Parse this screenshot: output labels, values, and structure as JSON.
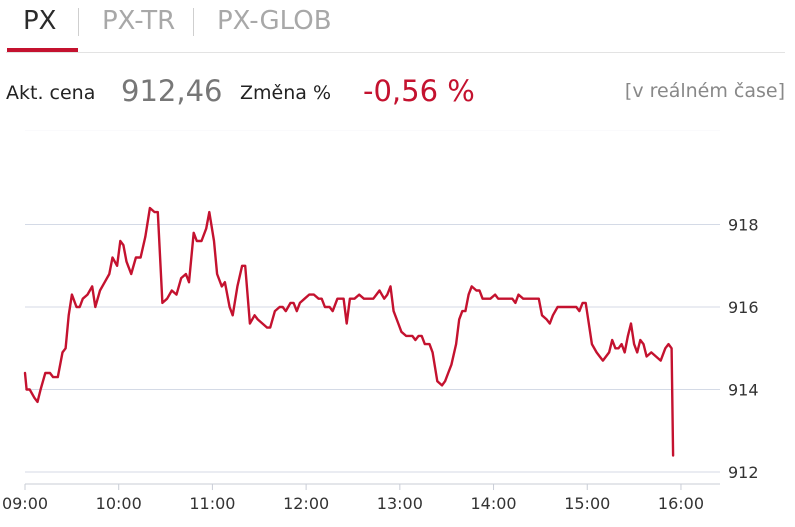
{
  "tabs": [
    {
      "label": "PX",
      "active": true
    },
    {
      "label": "PX-TR",
      "active": false
    },
    {
      "label": "PX-GLOB",
      "active": false
    }
  ],
  "quote": {
    "price_label": "Akt. cena",
    "price": "912,46",
    "change_label": "Změna %",
    "change": "-0,56 %",
    "realtime": "[v reálném čase]"
  },
  "colors": {
    "accent": "#c4122f",
    "grid": "#d4dae6",
    "text": "#333333"
  },
  "chart_data": {
    "type": "line",
    "title": "",
    "xlabel": "",
    "ylabel": "",
    "x_ticks": [
      "09:00",
      "10:00",
      "11:00",
      "12:00",
      "13:00",
      "14:00",
      "15:00",
      "16:00"
    ],
    "y_ticks": [
      "912",
      "914",
      "916",
      "918"
    ],
    "ylim": [
      912,
      920.3
    ],
    "xlim": [
      "09:00",
      "16:25"
    ],
    "grid": true,
    "series": [
      {
        "color": "#c4122f",
        "points": [
          [
            "09:00",
            914.4
          ],
          [
            "09:01",
            914.0
          ],
          [
            "09:03",
            914.0
          ],
          [
            "09:06",
            913.8
          ],
          [
            "09:08",
            913.7
          ],
          [
            "09:10",
            914.0
          ],
          [
            "09:13",
            914.4
          ],
          [
            "09:16",
            914.4
          ],
          [
            "09:18",
            914.3
          ],
          [
            "09:21",
            914.3
          ],
          [
            "09:24",
            914.9
          ],
          [
            "09:26",
            915.0
          ],
          [
            "09:28",
            915.8
          ],
          [
            "09:30",
            916.3
          ],
          [
            "09:33",
            916.0
          ],
          [
            "09:35",
            916.0
          ],
          [
            "09:37",
            916.2
          ],
          [
            "09:40",
            916.3
          ],
          [
            "09:43",
            916.5
          ],
          [
            "09:45",
            916.0
          ],
          [
            "09:48",
            916.4
          ],
          [
            "09:51",
            916.6
          ],
          [
            "09:54",
            916.8
          ],
          [
            "09:56",
            917.2
          ],
          [
            "09:59",
            917.0
          ],
          [
            "10:01",
            917.6
          ],
          [
            "10:03",
            917.5
          ],
          [
            "10:05",
            917.1
          ],
          [
            "10:08",
            916.8
          ],
          [
            "10:11",
            917.2
          ],
          [
            "10:14",
            917.2
          ],
          [
            "10:17",
            917.7
          ],
          [
            "10:20",
            918.4
          ],
          [
            "10:23",
            918.3
          ],
          [
            "10:25",
            918.3
          ],
          [
            "10:28",
            916.1
          ],
          [
            "10:31",
            916.2
          ],
          [
            "10:34",
            916.4
          ],
          [
            "10:37",
            916.3
          ],
          [
            "10:40",
            916.7
          ],
          [
            "10:43",
            916.8
          ],
          [
            "10:45",
            916.6
          ],
          [
            "10:48",
            917.8
          ],
          [
            "10:50",
            917.6
          ],
          [
            "10:53",
            917.6
          ],
          [
            "10:56",
            917.9
          ],
          [
            "10:58",
            918.3
          ],
          [
            "11:01",
            917.6
          ],
          [
            "11:03",
            916.8
          ],
          [
            "11:06",
            916.5
          ],
          [
            "11:08",
            916.6
          ],
          [
            "11:11",
            916.0
          ],
          [
            "11:13",
            915.8
          ],
          [
            "11:16",
            916.5
          ],
          [
            "11:19",
            917.0
          ],
          [
            "11:21",
            917.0
          ],
          [
            "11:24",
            915.6
          ],
          [
            "11:27",
            915.8
          ],
          [
            "11:29",
            915.7
          ],
          [
            "11:32",
            915.6
          ],
          [
            "11:35",
            915.5
          ],
          [
            "11:37",
            915.5
          ],
          [
            "11:40",
            915.9
          ],
          [
            "11:43",
            916.0
          ],
          [
            "11:45",
            916.0
          ],
          [
            "11:47",
            915.9
          ],
          [
            "11:50",
            916.1
          ],
          [
            "11:52",
            916.1
          ],
          [
            "11:54",
            915.9
          ],
          [
            "11:56",
            916.1
          ],
          [
            "11:59",
            916.2
          ],
          [
            "12:02",
            916.3
          ],
          [
            "12:05",
            916.3
          ],
          [
            "12:08",
            916.2
          ],
          [
            "12:10",
            916.2
          ],
          [
            "12:12",
            916.0
          ],
          [
            "12:15",
            916.0
          ],
          [
            "12:17",
            915.9
          ],
          [
            "12:20",
            916.2
          ],
          [
            "12:22",
            916.2
          ],
          [
            "12:24",
            916.2
          ],
          [
            "12:26",
            915.6
          ],
          [
            "12:28",
            916.2
          ],
          [
            "12:31",
            916.2
          ],
          [
            "12:34",
            916.3
          ],
          [
            "12:37",
            916.2
          ],
          [
            "12:40",
            916.2
          ],
          [
            "12:43",
            916.2
          ],
          [
            "12:45",
            916.3
          ],
          [
            "12:47",
            916.4
          ],
          [
            "12:50",
            916.2
          ],
          [
            "12:52",
            916.3
          ],
          [
            "12:54",
            916.5
          ],
          [
            "12:56",
            915.9
          ],
          [
            "12:59",
            915.6
          ],
          [
            "13:01",
            915.4
          ],
          [
            "13:04",
            915.3
          ],
          [
            "13:06",
            915.3
          ],
          [
            "13:08",
            915.3
          ],
          [
            "13:10",
            915.2
          ],
          [
            "13:12",
            915.3
          ],
          [
            "13:14",
            915.3
          ],
          [
            "13:16",
            915.1
          ],
          [
            "13:19",
            915.1
          ],
          [
            "13:21",
            914.9
          ],
          [
            "13:24",
            914.2
          ],
          [
            "13:27",
            914.1
          ],
          [
            "13:29",
            914.2
          ],
          [
            "13:31",
            914.4
          ],
          [
            "13:33",
            914.6
          ],
          [
            "13:36",
            915.1
          ],
          [
            "13:38",
            915.7
          ],
          [
            "13:40",
            915.9
          ],
          [
            "13:42",
            915.9
          ],
          [
            "13:44",
            916.3
          ],
          [
            "13:46",
            916.5
          ],
          [
            "13:49",
            916.4
          ],
          [
            "13:51",
            916.4
          ],
          [
            "13:53",
            916.2
          ],
          [
            "13:56",
            916.2
          ],
          [
            "13:58",
            916.2
          ],
          [
            "14:01",
            916.3
          ],
          [
            "14:03",
            916.2
          ],
          [
            "14:06",
            916.2
          ],
          [
            "14:09",
            916.2
          ],
          [
            "14:12",
            916.2
          ],
          [
            "14:14",
            916.1
          ],
          [
            "14:16",
            916.3
          ],
          [
            "14:19",
            916.2
          ],
          [
            "14:21",
            916.2
          ],
          [
            "14:23",
            916.2
          ],
          [
            "14:26",
            916.2
          ],
          [
            "14:29",
            916.2
          ],
          [
            "14:31",
            915.8
          ],
          [
            "14:34",
            915.7
          ],
          [
            "14:36",
            915.6
          ],
          [
            "14:38",
            915.8
          ],
          [
            "14:41",
            916.0
          ],
          [
            "14:43",
            916.0
          ],
          [
            "14:46",
            916.0
          ],
          [
            "14:48",
            916.0
          ],
          [
            "14:50",
            916.0
          ],
          [
            "14:53",
            916.0
          ],
          [
            "14:55",
            915.9
          ],
          [
            "14:57",
            916.1
          ],
          [
            "14:59",
            916.1
          ],
          [
            "15:01",
            915.6
          ],
          [
            "15:03",
            915.1
          ],
          [
            "15:06",
            914.9
          ],
          [
            "15:08",
            914.8
          ],
          [
            "15:10",
            914.7
          ],
          [
            "15:12",
            914.8
          ],
          [
            "15:14",
            914.9
          ],
          [
            "15:16",
            915.2
          ],
          [
            "15:18",
            915.0
          ],
          [
            "15:20",
            915.0
          ],
          [
            "15:22",
            915.1
          ],
          [
            "15:24",
            914.9
          ],
          [
            "15:26",
            915.3
          ],
          [
            "15:28",
            915.6
          ],
          [
            "15:30",
            915.1
          ],
          [
            "15:32",
            914.9
          ],
          [
            "15:34",
            915.2
          ],
          [
            "15:36",
            915.1
          ],
          [
            "15:38",
            914.8
          ],
          [
            "15:41",
            914.9
          ],
          [
            "15:44",
            914.8
          ],
          [
            "15:47",
            914.7
          ],
          [
            "15:50",
            915.0
          ],
          [
            "15:52",
            915.1
          ],
          [
            "15:54",
            915.0
          ],
          [
            "15:55",
            912.4
          ]
        ]
      }
    ]
  }
}
